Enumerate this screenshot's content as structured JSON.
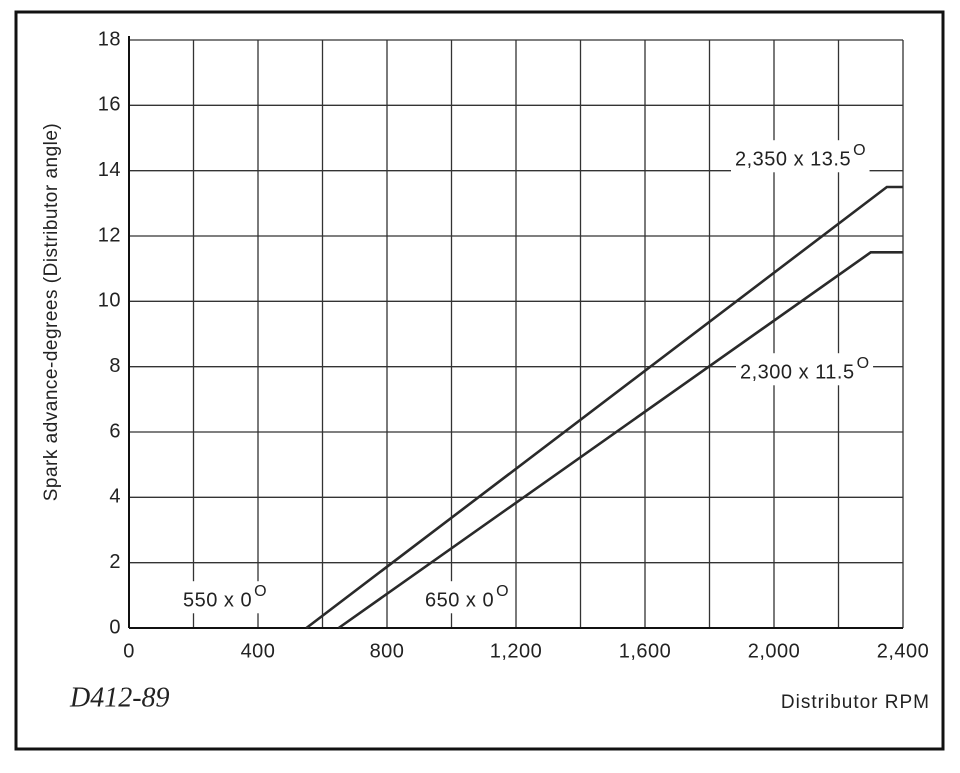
{
  "chart_data": {
    "type": "line",
    "code": "D412-89",
    "xlabel": "Distributor  RPM",
    "ylabel": "Spark advance-degrees (Distributor angle)",
    "xlim": [
      0,
      2400
    ],
    "ylim": [
      0,
      18
    ],
    "xticks": [
      0,
      400,
      800,
      {
        "value": 1200,
        "label": "1,200"
      },
      {
        "value": 1600,
        "label": "1,600"
      },
      {
        "value": 2000,
        "label": "2,000"
      },
      {
        "value": 2400,
        "label": "2,400"
      }
    ],
    "minor_xticks": [
      200,
      600,
      1000,
      1400,
      1800,
      2200
    ],
    "yticks": [
      0,
      2,
      4,
      6,
      8,
      10,
      12,
      14,
      16,
      18
    ],
    "grid": true,
    "series": [
      {
        "color": "#2a2a2a",
        "x": [
          550,
          2350,
          2400
        ],
        "values": [
          0,
          13.5,
          13.5
        ]
      },
      {
        "color": "#2a2a2a",
        "x": [
          650,
          2300,
          2400
        ],
        "values": [
          0,
          11.5,
          11.5
        ]
      }
    ],
    "annotations": [
      {
        "text": "2,350 x 13.5",
        "sup": "O"
      },
      {
        "text": "2,300 x 11.5",
        "sup": "O"
      },
      {
        "text": "550 x 0",
        "sup": "O"
      },
      {
        "text": "650 x 0",
        "sup": "O"
      }
    ]
  }
}
